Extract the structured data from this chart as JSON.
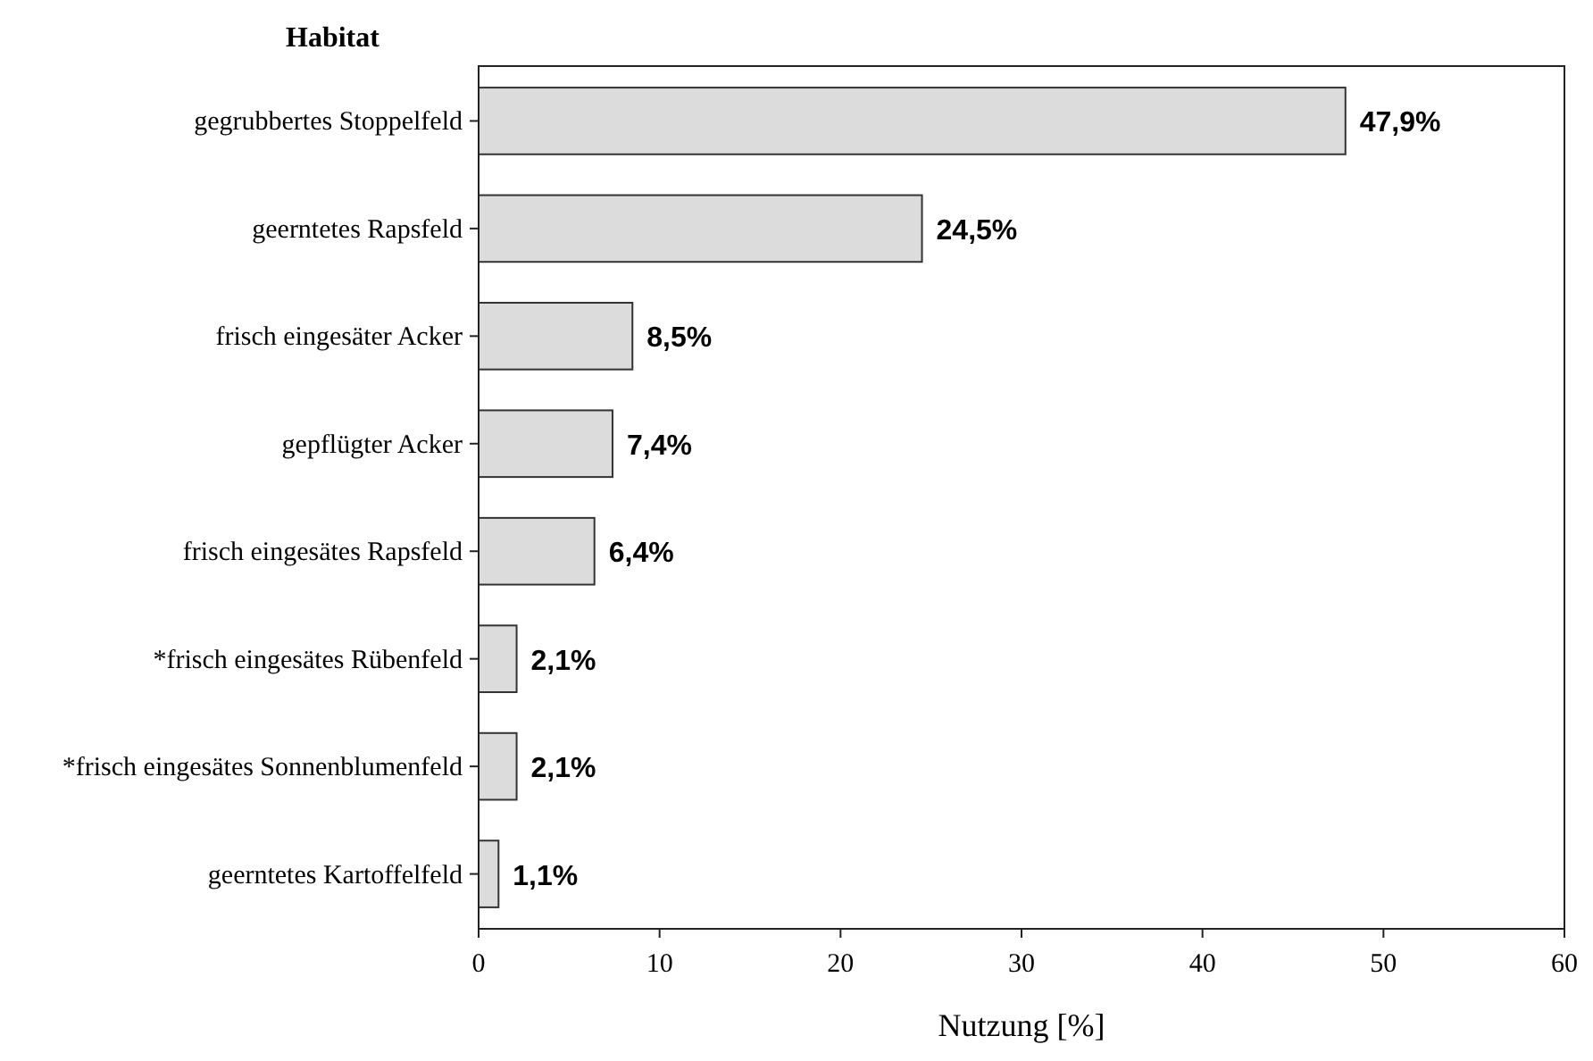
{
  "chart_data": {
    "type": "bar",
    "orientation": "horizontal",
    "ylabel": "Habitat",
    "xlabel": "Nutzung [%]",
    "categories": [
      "gegrubbertes Stoppelfeld",
      "geerntetes Rapsfeld",
      "frisch eingesäter Acker",
      "gepflügter Acker",
      "frisch eingesätes Rapsfeld",
      "*frisch eingesätes Rübenfeld",
      "*frisch eingesätes Sonnenblumenfeld",
      "geerntetes Kartoffelfeld"
    ],
    "values": [
      47.9,
      24.5,
      8.5,
      7.4,
      6.4,
      2.1,
      2.1,
      1.1
    ],
    "value_labels": [
      "47,9%",
      "24,5%",
      "8,5%",
      "7,4%",
      "6,4%",
      "2,1%",
      "2,1%",
      "1,1%"
    ],
    "color": "#dcdcdc",
    "xlim": [
      0,
      60
    ],
    "xticks": [
      0,
      10,
      20,
      30,
      40,
      50,
      60
    ],
    "grid": false
  }
}
